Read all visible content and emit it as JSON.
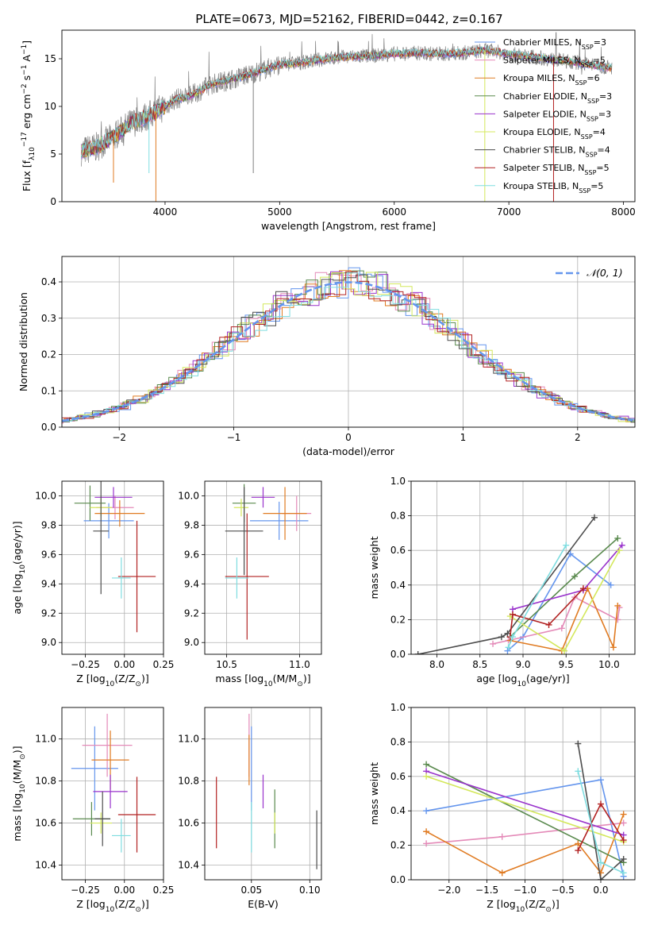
{
  "title": "PLATE=0673, MJD=52162, FIBERID=0442, z=0.167",
  "colors": {
    "chabrier_miles": "#6495ED",
    "salpeter_miles": "#E48AB8",
    "kroupa_miles": "#E07B22",
    "chabrier_elodie": "#5A8A4E",
    "salpeter_elodie": "#9933CC",
    "kroupa_elodie": "#D4E85C",
    "chabrier_stelib": "#4D4D4D",
    "salpeter_stelib": "#B22222",
    "kroupa_stelib": "#7FDDE0",
    "data_spectrum": "#808080"
  },
  "chart_data": [
    {
      "id": "spectrum",
      "type": "line",
      "title": "PLATE=0673, MJD=52162, FIBERID=0442, z=0.167",
      "xlabel": "wavelength [Angstrom, rest frame]",
      "ylabel_parts": [
        "Flux [f",
        "λ",
        "10",
        "−17",
        " erg cm",
        "−2",
        " s",
        "−1",
        " A",
        "−1",
        "]"
      ],
      "xlim": [
        3100,
        8100
      ],
      "ylim": [
        0,
        18
      ],
      "xticks": [
        4000,
        5000,
        6000,
        7000,
        8000
      ],
      "yticks": [
        0,
        5,
        10,
        15
      ],
      "grid": false,
      "legend_position": "right",
      "legend": [
        {
          "name": "Chabrier MILES, N",
          "sub": "SSP",
          "suffix": "=3",
          "color_key": "chabrier_miles"
        },
        {
          "name": "Salpeter MILES, N",
          "sub": "SSP",
          "suffix": "=5",
          "color_key": "salpeter_miles"
        },
        {
          "name": "Kroupa MILES, N",
          "sub": "SSP",
          "suffix": "=6",
          "color_key": "kroupa_miles"
        },
        {
          "name": "Chabrier ELODIE, N",
          "sub": "SSP",
          "suffix": "=3",
          "color_key": "chabrier_elodie"
        },
        {
          "name": "Salpeter ELODIE, N",
          "sub": "SSP",
          "suffix": "=3",
          "color_key": "salpeter_elodie"
        },
        {
          "name": "Kroupa ELODIE, N",
          "sub": "SSP",
          "suffix": "=4",
          "color_key": "kroupa_elodie"
        },
        {
          "name": "Chabrier STELIB, N",
          "sub": "SSP",
          "suffix": "=4",
          "color_key": "chabrier_stelib"
        },
        {
          "name": "Salpeter STELIB, N",
          "sub": "SSP",
          "suffix": "=5",
          "color_key": "salpeter_stelib"
        },
        {
          "name": "Kroupa STELIB, N",
          "sub": "SSP",
          "suffix": "=5",
          "color_key": "kroupa_stelib"
        }
      ],
      "data_envelope": {
        "x": [
          3270,
          3400,
          3550,
          3700,
          3850,
          4000,
          4100,
          4200,
          4300,
          4400,
          4600,
          4800,
          5000,
          5200,
          5400,
          5600,
          5800,
          6000,
          6200,
          6400,
          6600,
          6800,
          7000,
          7200,
          7400,
          7600,
          7900
        ],
        "y": [
          5.3,
          5.7,
          6.8,
          8.2,
          9.0,
          10.0,
          10.8,
          11.0,
          11.6,
          12.3,
          12.9,
          13.6,
          14.4,
          14.6,
          15.0,
          15.2,
          15.3,
          15.5,
          15.6,
          15.5,
          15.6,
          15.9,
          15.5,
          15.2,
          14.9,
          14.6,
          14.0
        ]
      },
      "drops": [
        {
          "x": 3550,
          "y": 2.0,
          "color_key": "kroupa_miles"
        },
        {
          "x": 3920,
          "y": 0.0,
          "color_key": "kroupa_miles"
        },
        {
          "x": 3860,
          "y": 3.0,
          "color_key": "kroupa_stelib"
        },
        {
          "x": 4770,
          "y": 3.0,
          "color_key": "data_spectrum"
        },
        {
          "x": 6790,
          "y": 0.0,
          "color_key": "kroupa_elodie"
        },
        {
          "x": 7390,
          "y": 0.0,
          "color_key": "salpeter_stelib"
        }
      ]
    },
    {
      "id": "residuals",
      "type": "histogram",
      "xlabel": "(data-model)/error",
      "ylabel": "Normed distribution",
      "xlim": [
        -2.5,
        2.5
      ],
      "ylim": [
        0,
        0.47
      ],
      "xticks": [
        -2,
        -1,
        0,
        1,
        2
      ],
      "xticklabels": [
        "−2",
        "−1",
        "0",
        "1",
        "2"
      ],
      "yticks": [
        0.0,
        0.1,
        0.2,
        0.3,
        0.4
      ],
      "yticklabels": [
        "0.0",
        "0.1",
        "0.2",
        "0.3",
        "0.4"
      ],
      "grid": true,
      "legend_position": "top-right",
      "reference_curve": {
        "name": "𝒩(0, 1)",
        "mean": 0,
        "sigma": 1,
        "style": "dashed",
        "color_key": "chabrier_miles"
      },
      "bin_width": 0.1
    },
    {
      "id": "age_vs_Z",
      "type": "errorbar",
      "xlabel_parts": [
        "Z [log",
        "10",
        "(Z/Z",
        "⊙",
        ")]"
      ],
      "ylabel_parts": [
        "age  [log",
        "10",
        "(age/yr)]"
      ],
      "xlim": [
        -0.4,
        0.25
      ],
      "ylim": [
        8.92,
        10.1
      ],
      "xticks": [
        -0.25,
        0.0,
        0.25
      ],
      "xticklabels": [
        "−0.25",
        "0.00",
        "0.25"
      ],
      "yticks": [
        9.0,
        9.2,
        9.4,
        9.6,
        9.8,
        10.0
      ],
      "yticklabels": [
        "9.0",
        "9.2",
        "9.4",
        "9.6",
        "9.8",
        "10.0"
      ],
      "grid": true,
      "points": [
        {
          "color_key": "chabrier_miles",
          "x": -0.1,
          "xerr": 0.16,
          "y": 9.83,
          "yerr": 0.12
        },
        {
          "color_key": "salpeter_miles",
          "x": -0.06,
          "xerr": 0.12,
          "y": 9.92,
          "yerr": 0.08
        },
        {
          "color_key": "kroupa_miles",
          "x": -0.03,
          "xerr": 0.16,
          "y": 9.88,
          "yerr": 0.09
        },
        {
          "color_key": "chabrier_elodie",
          "x": -0.22,
          "xerr": 0.1,
          "y": 9.95,
          "yerr": 0.12
        },
        {
          "color_key": "salpeter_elodie",
          "x": -0.07,
          "xerr": 0.12,
          "y": 9.99,
          "yerr": 0.07
        },
        {
          "color_key": "kroupa_elodie",
          "x": -0.15,
          "xerr": 0.07,
          "y": 9.92,
          "yerr": 0.06
        },
        {
          "color_key": "chabrier_stelib",
          "x": -0.15,
          "xerr": 0.05,
          "y": 9.76,
          "yerr": 0.43
        },
        {
          "color_key": "salpeter_stelib",
          "x": 0.08,
          "xerr": 0.12,
          "y": 9.45,
          "yerr": 0.38
        },
        {
          "color_key": "kroupa_stelib",
          "x": -0.02,
          "xerr": 0.06,
          "y": 9.44,
          "yerr": 0.14
        }
      ]
    },
    {
      "id": "age_vs_mass",
      "type": "errorbar",
      "xlabel_parts": [
        "mass [log",
        "10",
        "(M/M",
        "⊙",
        ")]"
      ],
      "xlim": [
        10.35,
        11.15
      ],
      "ylim": [
        8.92,
        10.1
      ],
      "xticks": [
        10.5,
        11.0
      ],
      "xticklabels": [
        "10.5",
        "11.0"
      ],
      "yticks": [
        9.0,
        9.2,
        9.4,
        9.6,
        9.8,
        10.0
      ],
      "yticklabels": [
        "9.0",
        "9.2",
        "9.4",
        "9.6",
        "9.8",
        "10.0"
      ],
      "grid": true,
      "points": [
        {
          "color_key": "chabrier_miles",
          "x": 10.86,
          "xerr": 0.2,
          "y": 9.83,
          "yerr": 0.13
        },
        {
          "color_key": "salpeter_miles",
          "x": 10.98,
          "xerr": 0.1,
          "y": 9.88,
          "yerr": 0.12
        },
        {
          "color_key": "kroupa_miles",
          "x": 10.9,
          "xerr": 0.15,
          "y": 9.88,
          "yerr": 0.18
        },
        {
          "color_key": "chabrier_elodie",
          "x": 10.62,
          "xerr": 0.08,
          "y": 9.95,
          "yerr": 0.13
        },
        {
          "color_key": "salpeter_elodie",
          "x": 10.75,
          "xerr": 0.08,
          "y": 9.99,
          "yerr": 0.07
        },
        {
          "color_key": "kroupa_elodie",
          "x": 10.6,
          "xerr": 0.05,
          "y": 9.92,
          "yerr": 0.06
        },
        {
          "color_key": "chabrier_stelib",
          "x": 10.62,
          "xerr": 0.13,
          "y": 9.76,
          "yerr": 0.3
        },
        {
          "color_key": "salpeter_stelib",
          "x": 10.64,
          "xerr": 0.15,
          "y": 9.45,
          "yerr": 0.43
        },
        {
          "color_key": "kroupa_stelib",
          "x": 10.57,
          "xerr": 0.08,
          "y": 9.44,
          "yerr": 0.14
        }
      ]
    },
    {
      "id": "weight_vs_age",
      "type": "line",
      "xlabel_parts": [
        "age  [log",
        "10",
        "(age/yr)]"
      ],
      "ylabel": "mass weight",
      "xlim": [
        7.7,
        10.3
      ],
      "ylim": [
        0,
        1.0
      ],
      "xticks": [
        8.0,
        8.5,
        9.0,
        9.5,
        10.0
      ],
      "xticklabels": [
        "8.0",
        "8.5",
        "9.0",
        "9.5",
        "10.0"
      ],
      "yticks": [
        0.0,
        0.2,
        0.4,
        0.6,
        0.8,
        1.0
      ],
      "yticklabels": [
        "0.0",
        "0.2",
        "0.4",
        "0.6",
        "0.8",
        "1.0"
      ],
      "grid": true,
      "series": [
        {
          "color_key": "chabrier_miles",
          "x": [
            8.82,
            9.0,
            9.55,
            10.02
          ],
          "y": [
            0.02,
            0.1,
            0.58,
            0.4
          ]
        },
        {
          "color_key": "salpeter_miles",
          "x": [
            8.65,
            8.83,
            9.45,
            9.6,
            10.1,
            10.12
          ],
          "y": [
            0.06,
            0.08,
            0.15,
            0.33,
            0.2,
            0.27
          ]
        },
        {
          "color_key": "kroupa_miles",
          "x": [
            8.85,
            9.45,
            9.75,
            10.05,
            10.1
          ],
          "y": [
            0.08,
            0.02,
            0.38,
            0.04,
            0.28
          ]
        },
        {
          "color_key": "chabrier_elodie",
          "x": [
            8.85,
            9.6,
            10.1
          ],
          "y": [
            0.1,
            0.45,
            0.67
          ]
        },
        {
          "color_key": "salpeter_elodie",
          "x": [
            8.88,
            9.7,
            10.15
          ],
          "y": [
            0.26,
            0.37,
            0.63
          ]
        },
        {
          "color_key": "kroupa_elodie",
          "x": [
            8.85,
            9.48,
            10.12
          ],
          "y": [
            0.22,
            0.02,
            0.6
          ]
        },
        {
          "color_key": "chabrier_stelib",
          "x": [
            7.78,
            8.75,
            8.82,
            9.83
          ],
          "y": [
            0.0,
            0.1,
            0.12,
            0.79
          ]
        },
        {
          "color_key": "salpeter_stelib",
          "x": [
            8.85,
            8.88,
            9.3,
            9.7
          ],
          "y": [
            0.1,
            0.23,
            0.17,
            0.38
          ]
        },
        {
          "color_key": "kroupa_stelib",
          "x": [
            8.83,
            8.88,
            9.5
          ],
          "y": [
            0.04,
            0.1,
            0.63
          ]
        }
      ]
    },
    {
      "id": "mass_vs_Z",
      "type": "errorbar",
      "xlabel_parts": [
        "Z [log",
        "10",
        "(Z/Z",
        "⊙",
        ")]"
      ],
      "ylabel_parts": [
        "mass [log",
        "10",
        "(M/M",
        "⊙",
        ")]"
      ],
      "xlim": [
        -0.4,
        0.25
      ],
      "ylim": [
        10.33,
        11.15
      ],
      "xticks": [
        -0.25,
        0.0,
        0.25
      ],
      "xticklabels": [
        "−0.25",
        "0.00",
        "0.25"
      ],
      "yticks": [
        10.4,
        10.6,
        10.8,
        11.0
      ],
      "yticklabels": [
        "10.4",
        "10.6",
        "10.8",
        "11.0"
      ],
      "grid": true,
      "points": [
        {
          "color_key": "chabrier_miles",
          "x": -0.19,
          "xerr": 0.15,
          "y": 10.86,
          "yerr": 0.2
        },
        {
          "color_key": "salpeter_miles",
          "x": -0.11,
          "xerr": 0.16,
          "y": 10.97,
          "yerr": 0.15
        },
        {
          "color_key": "kroupa_miles",
          "x": -0.09,
          "xerr": 0.12,
          "y": 10.9,
          "yerr": 0.14
        },
        {
          "color_key": "chabrier_elodie",
          "x": -0.21,
          "xerr": 0.12,
          "y": 10.62,
          "yerr": 0.08
        },
        {
          "color_key": "salpeter_elodie",
          "x": -0.09,
          "xerr": 0.11,
          "y": 10.75,
          "yerr": 0.08
        },
        {
          "color_key": "kroupa_elodie",
          "x": -0.15,
          "xerr": 0.07,
          "y": 10.6,
          "yerr": 0.05
        },
        {
          "color_key": "chabrier_stelib",
          "x": -0.14,
          "xerr": 0.05,
          "y": 10.62,
          "yerr": 0.13
        },
        {
          "color_key": "salpeter_stelib",
          "x": 0.08,
          "xerr": 0.12,
          "y": 10.64,
          "yerr": 0.18
        },
        {
          "color_key": "kroupa_stelib",
          "x": -0.02,
          "xerr": 0.06,
          "y": 10.54,
          "yerr": 0.08
        }
      ]
    },
    {
      "id": "mass_vs_EBV",
      "type": "errorbar",
      "xlabel": "E(B-V)",
      "xlim": [
        0.01,
        0.11
      ],
      "ylim": [
        10.33,
        11.15
      ],
      "xticks": [
        0.05,
        0.1
      ],
      "xticklabels": [
        "0.05",
        "0.10"
      ],
      "yticks": [
        10.4,
        10.6,
        10.8,
        11.0
      ],
      "yticklabels": [
        "10.4",
        "10.6",
        "10.8",
        "11.0"
      ],
      "grid": true,
      "points": [
        {
          "color_key": "chabrier_miles",
          "x": 0.05,
          "y": 10.86,
          "yerr": 0.2
        },
        {
          "color_key": "salpeter_miles",
          "x": 0.048,
          "y": 10.97,
          "yerr": 0.15
        },
        {
          "color_key": "kroupa_miles",
          "x": 0.048,
          "y": 10.9,
          "yerr": 0.12
        },
        {
          "color_key": "chabrier_elodie",
          "x": 0.07,
          "y": 10.62,
          "yerr": 0.14
        },
        {
          "color_key": "salpeter_elodie",
          "x": 0.06,
          "y": 10.75,
          "yerr": 0.08
        },
        {
          "color_key": "kroupa_elodie",
          "x": 0.07,
          "y": 10.6,
          "yerr": 0.05
        },
        {
          "color_key": "chabrier_stelib",
          "x": 0.106,
          "y": 10.52,
          "yerr": 0.14
        },
        {
          "color_key": "salpeter_stelib",
          "x": 0.02,
          "y": 10.65,
          "yerr": 0.17
        },
        {
          "color_key": "kroupa_stelib",
          "x": 0.05,
          "y": 10.58,
          "yerr": 0.12
        }
      ]
    },
    {
      "id": "weight_vs_Z",
      "type": "line",
      "xlabel_parts": [
        "Z [log",
        "10",
        "(Z/Z",
        "⊙",
        ")]"
      ],
      "ylabel": "mass weight",
      "xlim": [
        -2.5,
        0.45
      ],
      "ylim": [
        0,
        1.0
      ],
      "xticks": [
        -2.0,
        -1.5,
        -1.0,
        -0.5,
        0.0
      ],
      "xticklabels": [
        "−2.0",
        "−1.5",
        "−1.0",
        "−0.5",
        "0.0"
      ],
      "yticks": [
        0.0,
        0.2,
        0.4,
        0.6,
        0.8,
        1.0
      ],
      "yticklabels": [
        "0.0",
        "0.2",
        "0.4",
        "0.6",
        "0.8",
        "1.0"
      ],
      "grid": true,
      "series": [
        {
          "color_key": "chabrier_miles",
          "x": [
            -2.3,
            0.0,
            0.3
          ],
          "y": [
            0.4,
            0.58,
            0.02
          ]
        },
        {
          "color_key": "salpeter_miles",
          "x": [
            -2.3,
            -1.3,
            0.3
          ],
          "y": [
            0.21,
            0.25,
            0.33
          ]
        },
        {
          "color_key": "kroupa_miles",
          "x": [
            -2.3,
            -1.3,
            -0.3,
            0.0,
            0.3
          ],
          "y": [
            0.28,
            0.04,
            0.21,
            0.04,
            0.38
          ]
        },
        {
          "color_key": "chabrier_elodie",
          "x": [
            -2.3,
            0.3
          ],
          "y": [
            0.67,
            0.1
          ]
        },
        {
          "color_key": "salpeter_elodie",
          "x": [
            -2.3,
            0.3
          ],
          "y": [
            0.63,
            0.26
          ]
        },
        {
          "color_key": "kroupa_elodie",
          "x": [
            -2.3,
            0.3
          ],
          "y": [
            0.6,
            0.22
          ]
        },
        {
          "color_key": "chabrier_stelib",
          "x": [
            -0.3,
            0.0,
            0.3
          ],
          "y": [
            0.79,
            0.0,
            0.12
          ]
        },
        {
          "color_key": "salpeter_stelib",
          "x": [
            -0.3,
            0.0,
            0.3
          ],
          "y": [
            0.17,
            0.44,
            0.23
          ]
        },
        {
          "color_key": "kroupa_stelib",
          "x": [
            -0.3,
            0.0,
            0.3
          ],
          "y": [
            0.63,
            0.1,
            0.04
          ]
        }
      ]
    }
  ]
}
